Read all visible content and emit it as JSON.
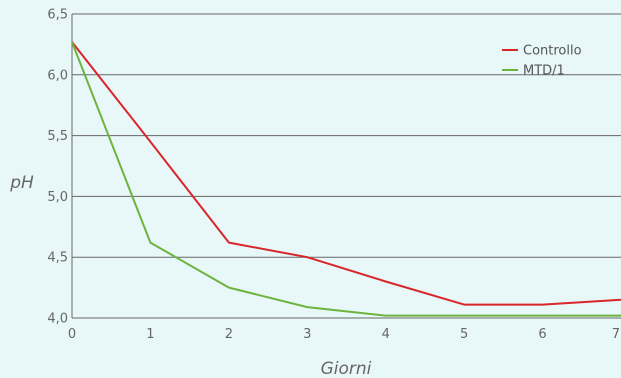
{
  "chart_data": {
    "type": "line",
    "xlabel": "Giorni",
    "ylabel": "pH",
    "x": [
      0,
      1,
      2,
      3,
      4,
      5,
      6,
      7
    ],
    "x_ticks": [
      "0",
      "1",
      "2",
      "3",
      "4",
      "5",
      "6",
      "7"
    ],
    "y_ticks": [
      "4,0",
      "4,5",
      "5,0",
      "5,5",
      "6,0",
      "6,5"
    ],
    "xlim": [
      0,
      7
    ],
    "ylim": [
      4.0,
      6.5
    ],
    "grid": "horizontal",
    "legend_position": "top-right",
    "series": [
      {
        "name": "Controllo",
        "color": "#d9262b",
        "values": [
          6.27,
          5.45,
          4.62,
          4.5,
          4.3,
          4.11,
          4.11,
          4.15
        ]
      },
      {
        "name": "MTD/1",
        "color": "#6db33f",
        "values": [
          6.27,
          4.62,
          4.25,
          4.09,
          4.02,
          4.02,
          4.02,
          4.02
        ]
      }
    ]
  }
}
